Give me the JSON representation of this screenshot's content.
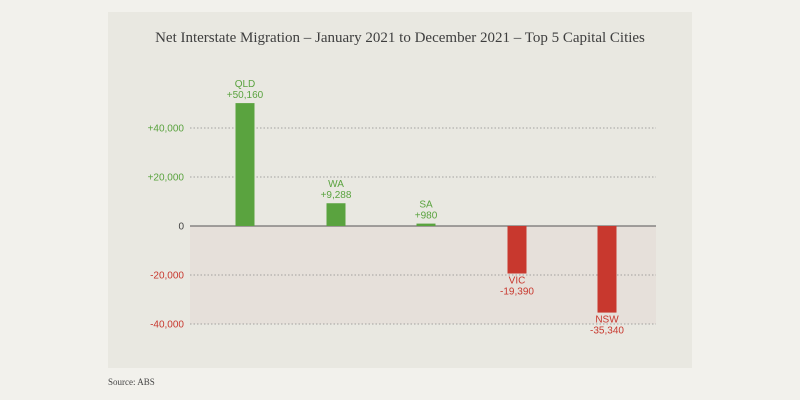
{
  "chart_data": {
    "type": "bar",
    "title": "Net Interstate Migration – January 2021 to December 2021 – Top 5 Capital Cities",
    "xlabel": "",
    "ylabel": "",
    "ylim": [
      -40000,
      50160
    ],
    "categories": [
      "QLD",
      "WA",
      "SA",
      "VIC",
      "NSW"
    ],
    "values": [
      50160,
      9288,
      980,
      -19390,
      -35340
    ],
    "value_labels": [
      "+50,160",
      "+9,288",
      "+980",
      "-19,390",
      "-35,340"
    ],
    "y_ticks": [
      {
        "value": 40000,
        "label": "+40,000"
      },
      {
        "value": 20000,
        "label": "+20,000"
      },
      {
        "value": 0,
        "label": "0"
      },
      {
        "value": -20000,
        "label": "-20,000"
      },
      {
        "value": -40000,
        "label": "-40,000"
      }
    ],
    "grid": true,
    "colors": {
      "positive": "#5aa33f",
      "negative": "#c8382e",
      "negative_region": "#e6e0da",
      "grid": "#8a8a8a",
      "axis_text": "#444444"
    }
  },
  "source": "Source: ABS"
}
